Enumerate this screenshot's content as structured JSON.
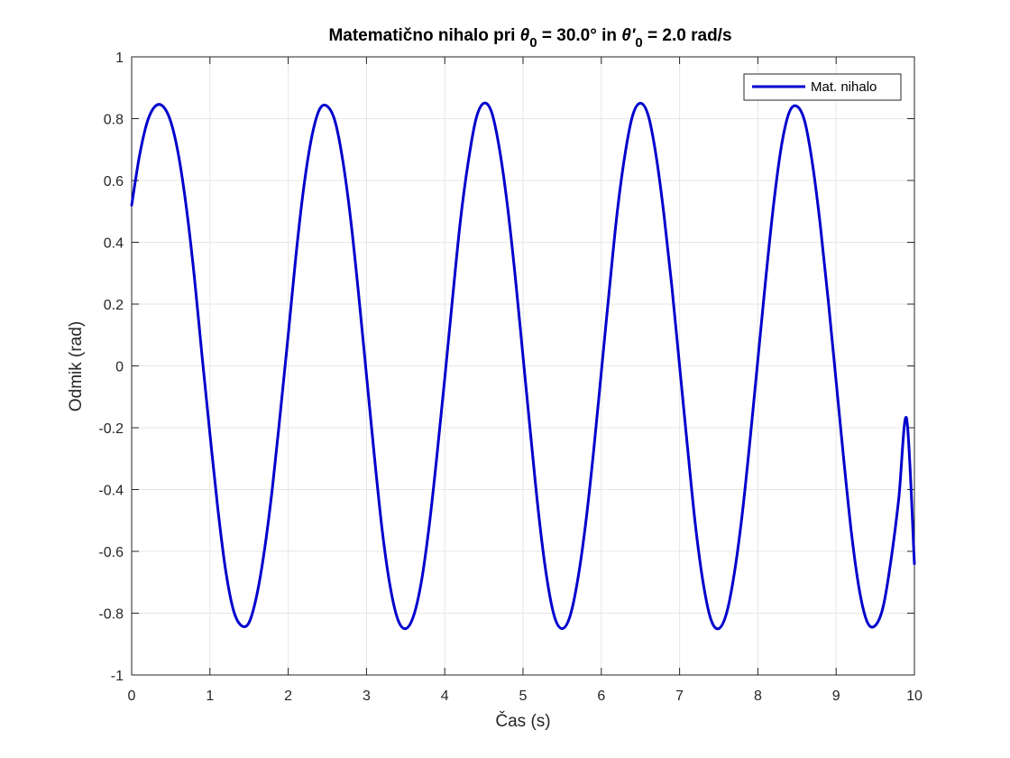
{
  "chart_data": {
    "type": "line",
    "title_parts": {
      "prefix": "Matematično nihalo pri ",
      "theta_symbol": "θ",
      "sub_zero": "0",
      "mid": " = 30.0° in ",
      "theta_prime": "θ'",
      "sub_zero2": "0",
      "suffix": " = 2.0 rad/s"
    },
    "xlabel": "Čas (s)",
    "ylabel": "Odmik (rad)",
    "xlim": [
      0,
      10
    ],
    "ylim": [
      -1,
      1
    ],
    "xticks": [
      0,
      1,
      2,
      3,
      4,
      5,
      6,
      7,
      8,
      9,
      10
    ],
    "xtick_labels": [
      "0",
      "1",
      "2",
      "3",
      "4",
      "5",
      "6",
      "7",
      "8",
      "9",
      "10"
    ],
    "yticks": [
      -1,
      -0.8,
      -0.6,
      -0.4,
      -0.2,
      0,
      0.2,
      0.4,
      0.6,
      0.8,
      1
    ],
    "ytick_labels": [
      "-1",
      "-0.8",
      "-0.6",
      "-0.4",
      "-0.2",
      "0",
      "0.2",
      "0.4",
      "0.6",
      "0.8",
      "1"
    ],
    "grid": true,
    "legend_position": "top-right",
    "series": [
      {
        "name": "Mat. nihalo",
        "color": "#0000CD",
        "x": [
          0,
          0.1,
          0.2,
          0.3,
          0.4,
          0.5,
          0.6,
          0.7,
          0.8,
          0.9,
          1.0,
          1.1,
          1.2,
          1.3,
          1.4,
          1.5,
          1.6,
          1.7,
          1.8,
          1.9,
          2.0,
          2.1,
          2.2,
          2.3,
          2.4,
          2.5,
          2.6,
          2.7,
          2.8,
          2.9,
          3.0,
          3.1,
          3.2,
          3.3,
          3.4,
          3.5,
          3.6,
          3.7,
          3.8,
          3.9,
          4.0,
          4.1,
          4.2,
          4.3,
          4.4,
          4.5,
          4.6,
          4.7,
          4.8,
          4.9,
          5.0,
          5.1,
          5.2,
          5.3,
          5.4,
          5.5,
          5.6,
          5.7,
          5.8,
          5.9,
          6.0,
          6.1,
          6.2,
          6.3,
          6.4,
          6.5,
          6.6,
          6.7,
          6.8,
          6.9,
          7.0,
          7.1,
          7.2,
          7.3,
          7.4,
          7.5,
          7.6,
          7.7,
          7.8,
          7.9,
          8.0,
          8.1,
          8.2,
          8.3,
          8.4,
          8.5,
          8.6,
          8.7,
          8.8,
          8.9,
          9.0,
          9.1,
          9.2,
          9.3,
          9.4,
          9.5,
          9.6,
          9.7,
          9.8,
          9.9,
          10.0
        ],
        "y": [
          0.52,
          0.68,
          0.79,
          0.84,
          0.84,
          0.79,
          0.68,
          0.51,
          0.29,
          0.03,
          -0.22,
          -0.46,
          -0.66,
          -0.79,
          -0.84,
          -0.83,
          -0.74,
          -0.59,
          -0.39,
          -0.15,
          0.1,
          0.36,
          0.58,
          0.74,
          0.83,
          0.84,
          0.79,
          0.66,
          0.47,
          0.23,
          -0.03,
          -0.29,
          -0.53,
          -0.71,
          -0.82,
          -0.85,
          -0.81,
          -0.7,
          -0.52,
          -0.29,
          -0.04,
          0.22,
          0.47,
          0.66,
          0.8,
          0.85,
          0.82,
          0.7,
          0.52,
          0.29,
          0.03,
          -0.23,
          -0.48,
          -0.68,
          -0.81,
          -0.85,
          -0.81,
          -0.69,
          -0.51,
          -0.28,
          -0.02,
          0.24,
          0.49,
          0.68,
          0.81,
          0.85,
          0.81,
          0.68,
          0.49,
          0.26,
          0.0,
          -0.26,
          -0.51,
          -0.7,
          -0.82,
          -0.85,
          -0.8,
          -0.67,
          -0.48,
          -0.24,
          0.02,
          0.28,
          0.52,
          0.71,
          0.82,
          0.84,
          0.79,
          0.65,
          0.45,
          0.21,
          -0.05,
          -0.31,
          -0.55,
          -0.73,
          -0.83,
          -0.84,
          -0.78,
          -0.63,
          -0.43,
          -0.17,
          -0.64
        ]
      }
    ]
  }
}
